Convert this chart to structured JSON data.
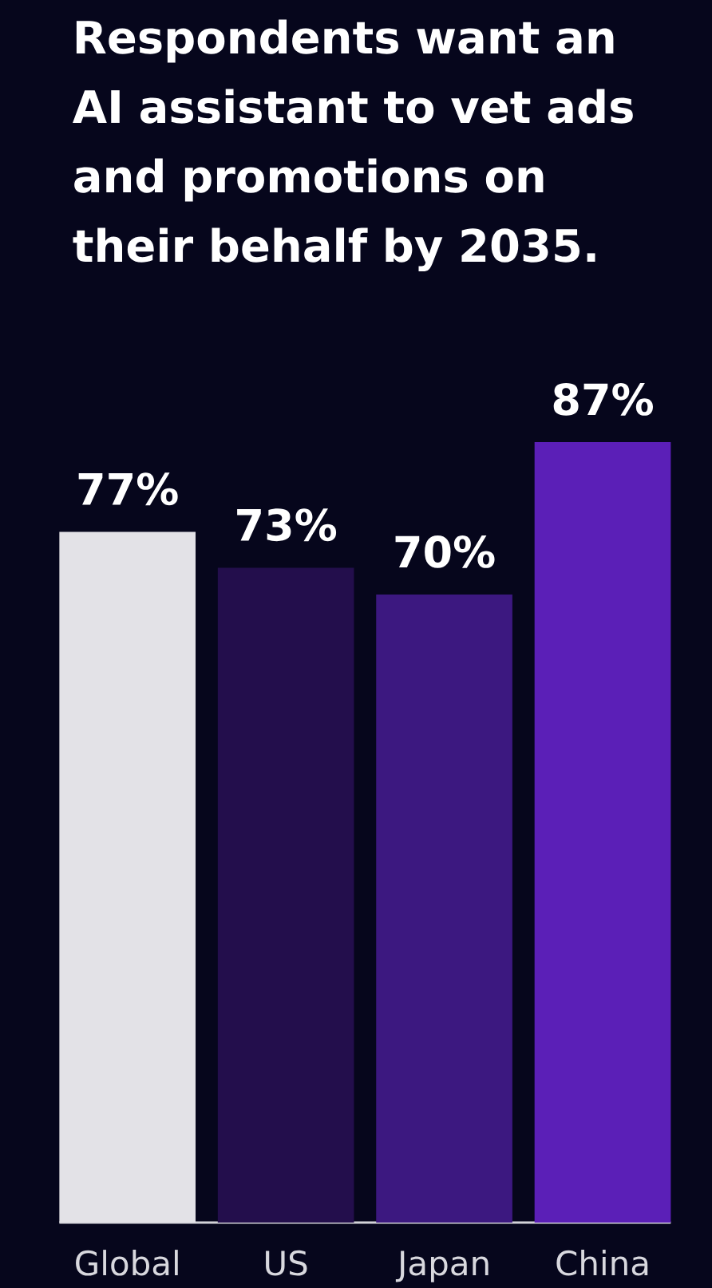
{
  "chart_data": {
    "type": "bar",
    "title": "Respondents want an AI assistant to vet ads and promotions on their behalf by 2035.",
    "categories": [
      "Global",
      "US",
      "Japan",
      "China"
    ],
    "values": [
      77,
      73,
      70,
      87
    ],
    "colors": [
      "#e3e2e7",
      "#230e4c",
      "#3c1880",
      "#5b1fb7"
    ],
    "value_labels": [
      "77%",
      "73%",
      "70%",
      "87%"
    ]
  }
}
